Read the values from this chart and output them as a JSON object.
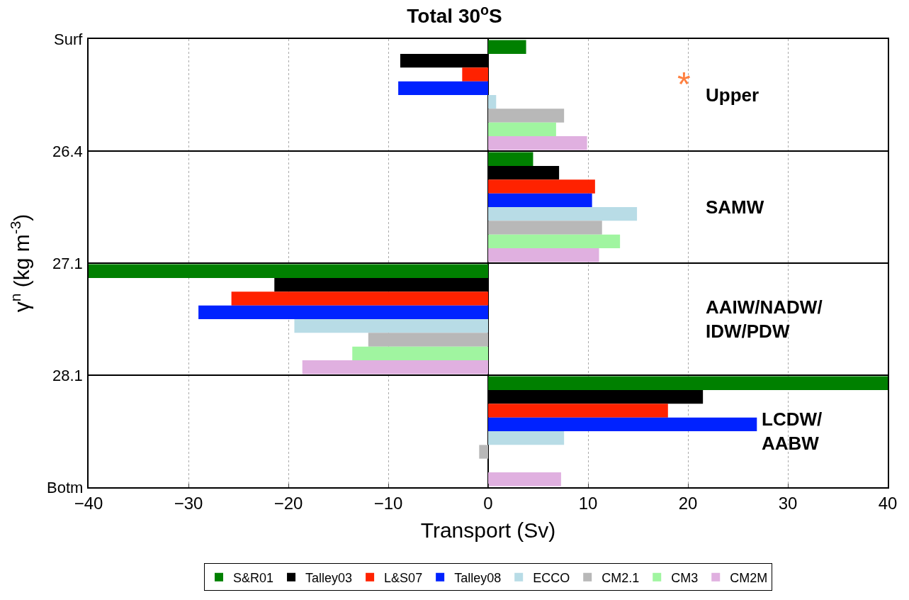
{
  "chart_data": {
    "type": "bar",
    "orientation": "horizontal",
    "title": "Total 30$^{o}$S",
    "xlabel": "Transport (Sv)",
    "ylabel": "γ$^{n}$ (kg m$^{-3}$)",
    "categories": [
      "Upper",
      "SAMW",
      "AAIW/NADW/\nIDW/PDW",
      "LCDW/\nAABW"
    ],
    "xlim": [
      -40,
      40
    ],
    "xticks": [
      -40,
      -30,
      -20,
      -10,
      0,
      10,
      20,
      30,
      40
    ],
    "grid": true,
    "legend": "bottom",
    "series": [
      {
        "name": "S&R01",
        "color": "#008000",
        "values": [
          3.8,
          4.5,
          -40,
          40
        ]
      },
      {
        "name": "Talley03",
        "color": "#000000",
        "values": [
          -8.8,
          7.1,
          -21.4,
          21.5
        ]
      },
      {
        "name": "L&S07",
        "color": "#ff2200",
        "values": [
          -2.6,
          10.7,
          -25.7,
          18.0
        ]
      },
      {
        "name": "Talley08",
        "color": "#0022ff",
        "values": [
          -9.0,
          10.4,
          -29.0,
          26.9
        ]
      },
      {
        "name": "ECCO",
        "color": "#b8dce6",
        "values": [
          0.8,
          14.9,
          -19.4,
          7.6
        ]
      },
      {
        "name": "CM2.1",
        "color": "#b8b8b8",
        "values": [
          7.6,
          11.4,
          -12.0,
          -0.9
        ]
      },
      {
        "name": "CM3",
        "color": "#a0f5a0",
        "values": [
          6.8,
          13.2,
          -13.6,
          null
        ]
      },
      {
        "name": "CM2M",
        "color": "#e0b0e0",
        "values": [
          9.9,
          11.1,
          -18.6,
          7.3
        ]
      }
    ],
    "annotations": [
      "Surf",
      "26.4",
      "27.1",
      "28.1",
      "Botm",
      "*"
    ]
  }
}
